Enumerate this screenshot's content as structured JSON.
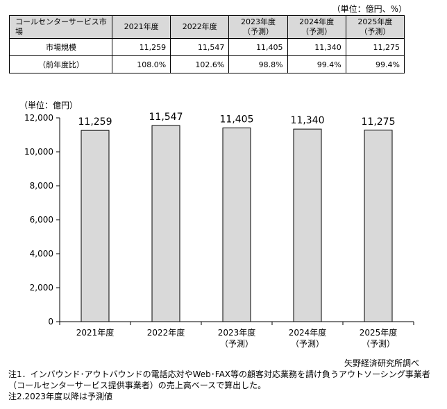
{
  "table": {
    "unit": "（単位：億円、%）",
    "header_label": "コールセンターサービス市場",
    "years": [
      "2021年度",
      "2022年度",
      "2023年度",
      "2024年度",
      "2025年度"
    ],
    "forecast_flags": [
      false,
      false,
      true,
      true,
      true
    ],
    "forecast_text": "（予測）",
    "rows": [
      {
        "label": "市場規模",
        "values": [
          "11,259",
          "11,547",
          "11,405",
          "11,340",
          "11,275"
        ]
      },
      {
        "label": "（前年度比）",
        "values": [
          "108.0%",
          "102.6%",
          "98.8%",
          "99.4%",
          "99.4%"
        ]
      }
    ]
  },
  "chart_data": {
    "type": "bar",
    "categories": [
      "2021年度",
      "2022年度",
      "2023年度",
      "2024年度",
      "2025年度"
    ],
    "category_sublabels": [
      "",
      "",
      "（予測）",
      "（予測）",
      "（予測）"
    ],
    "values": [
      11259,
      11547,
      11405,
      11340,
      11275
    ],
    "value_labels": [
      "11,259",
      "11,547",
      "11,405",
      "11,340",
      "11,275"
    ],
    "ylabel": "（単位：億円）",
    "ylim": [
      0,
      12000
    ],
    "yticks": [
      0,
      2000,
      4000,
      6000,
      8000,
      10000,
      12000
    ],
    "ytick_labels": [
      "0",
      "2,000",
      "4,000",
      "6,000",
      "8,000",
      "10,000",
      "12,000"
    ],
    "grid": false,
    "bar_color": "#d9d9d9"
  },
  "source": "矢野経済研究所調べ",
  "notes": [
    "注1．インバウンド･アウトバウンドの電話応対やWeb･FAX等の顧客対応業務を請け負うアウトソーシング事業者（コールセンターサービス提供事業者）の売上高ベースで算出した。",
    "注2.2023年度以降は予測値"
  ]
}
